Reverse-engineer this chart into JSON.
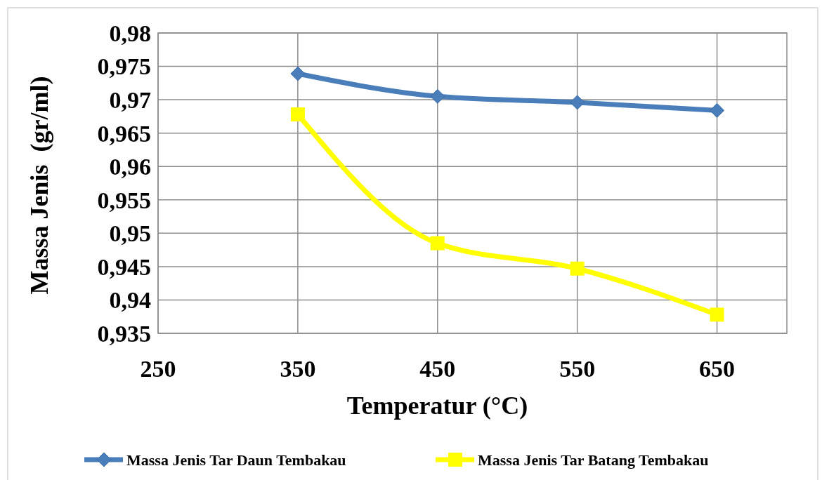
{
  "chart_data": {
    "type": "line",
    "xlabel": "Temperatur (°C)",
    "ylabel": "Massa Jenis  (gr/ml)",
    "x": [
      350,
      450,
      550,
      650
    ],
    "series": [
      {
        "name": "Massa Jenis Tar Daun Tembakau",
        "color": "#4a7ebb",
        "marker": "diamond",
        "values": [
          0.9739,
          0.9705,
          0.9696,
          0.9684
        ]
      },
      {
        "name": "Massa Jenis Tar Batang Tembakau",
        "color": "#ffff00",
        "marker": "square",
        "values": [
          0.9678,
          0.9485,
          0.9447,
          0.9378
        ]
      }
    ],
    "xlim": [
      250,
      700
    ],
    "xticks": [
      250,
      350,
      450,
      550,
      650
    ],
    "ylim": [
      0.935,
      0.98
    ],
    "yticks": [
      {
        "value": 0.935,
        "label": "0,935"
      },
      {
        "value": 0.94,
        "label": "0,94"
      },
      {
        "value": 0.945,
        "label": "0,945"
      },
      {
        "value": 0.95,
        "label": "0,95"
      },
      {
        "value": 0.955,
        "label": "0,955"
      },
      {
        "value": 0.96,
        "label": "0,96"
      },
      {
        "value": 0.965,
        "label": "0,965"
      },
      {
        "value": 0.97,
        "label": "0,97"
      },
      {
        "value": 0.975,
        "label": "0,975"
      },
      {
        "value": 0.98,
        "label": "0,98"
      }
    ],
    "grid": true,
    "legend": "bottom",
    "line_style": "solid"
  }
}
